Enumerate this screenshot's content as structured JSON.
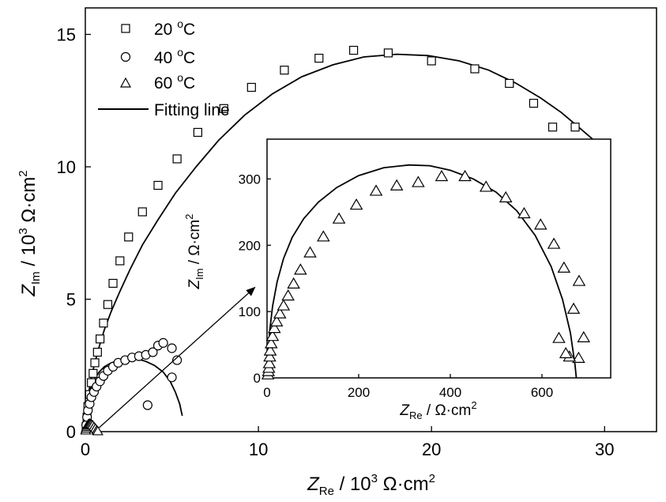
{
  "chart_data": [
    {
      "type": "scatter",
      "title": "",
      "xlabel": {
        "var": "Z",
        "sub": "Re",
        "unit_pre": " / 10",
        "exp": "3",
        "unit_post": " Ω·cm",
        "unit_exp": "2"
      },
      "ylabel": {
        "var": "Z",
        "sub": "Im",
        "unit_pre": " / 10",
        "exp": "3",
        "unit_post": " Ω·cm",
        "unit_exp": "2"
      },
      "xlim": [
        0,
        33
      ],
      "ylim": [
        0,
        16
      ],
      "x_ticks": [
        0,
        10,
        20,
        30
      ],
      "y_ticks": [
        0,
        5,
        10,
        15
      ],
      "x_tick_labels": [
        "0",
        "10",
        "20",
        "30"
      ],
      "y_tick_labels": [
        "0",
        "5",
        "10",
        "15"
      ],
      "grid": false,
      "legend_position": "top-left",
      "legend": [
        {
          "marker": "square",
          "text": "20 ",
          "deg": "o",
          "unit": "C"
        },
        {
          "marker": "circle",
          "text": "40 ",
          "deg": "o",
          "unit": "C"
        },
        {
          "marker": "triangle",
          "text": "60 ",
          "deg": "o",
          "unit": "C"
        },
        {
          "marker": "line",
          "text": "Fitting line",
          "deg": "",
          "unit": ""
        }
      ],
      "series": [
        {
          "marker": "square",
          "x": [
            0.05,
            0.1,
            0.15,
            0.25,
            0.35,
            0.45,
            0.55,
            0.7,
            0.85,
            1.05,
            1.3,
            1.6,
            2.0,
            2.5,
            3.3,
            4.2,
            5.3,
            6.5,
            8.0,
            9.6,
            11.5,
            13.5,
            15.5,
            17.5,
            20.0,
            22.5,
            24.5,
            25.9,
            27.0,
            28.3
          ],
          "y": [
            0.2,
            0.55,
            0.95,
            1.4,
            1.85,
            2.2,
            2.6,
            3.0,
            3.5,
            4.1,
            4.8,
            5.6,
            6.45,
            7.35,
            8.3,
            9.3,
            10.3,
            11.3,
            12.2,
            13.0,
            13.65,
            14.1,
            14.4,
            14.3,
            14.0,
            13.7,
            13.15,
            12.4,
            11.5,
            11.5
          ]
        },
        {
          "marker": "circle",
          "x": [
            0.05,
            0.1,
            0.15,
            0.25,
            0.35,
            0.5,
            0.65,
            0.85,
            1.05,
            1.3,
            1.6,
            1.9,
            2.3,
            2.7,
            3.1,
            3.5,
            3.9,
            4.2,
            4.5,
            5.0,
            5.3,
            3.6,
            5.0
          ],
          "y": [
            0.25,
            0.55,
            0.8,
            1.05,
            1.3,
            1.5,
            1.7,
            1.9,
            2.1,
            2.3,
            2.45,
            2.6,
            2.7,
            2.8,
            2.85,
            2.9,
            3.0,
            3.25,
            3.35,
            3.15,
            2.7,
            1.0,
            2.05
          ]
        },
        {
          "marker": "triangle",
          "x": [
            0.02,
            0.05,
            0.08,
            0.12,
            0.16,
            0.2,
            0.25,
            0.3,
            0.36,
            0.42,
            0.5,
            0.58,
            0.66,
            0.72
          ],
          "y": [
            0.05,
            0.12,
            0.18,
            0.23,
            0.27,
            0.29,
            0.3,
            0.29,
            0.27,
            0.24,
            0.18,
            0.12,
            0.05,
            0.02
          ]
        }
      ],
      "fits": [
        {
          "name": "20",
          "x": [
            0,
            0.05,
            0.1,
            0.2,
            0.35,
            0.55,
            0.8,
            1.1,
            1.5,
            2.0,
            2.6,
            3.3,
            4.2,
            5.2,
            6.4,
            7.7,
            9.2,
            10.8,
            12.5,
            14.3,
            16.1,
            18.0,
            19.8,
            21.6,
            23.3,
            24.9,
            26.3,
            27.5,
            28.5,
            29.3
          ],
          "y": [
            0,
            0.45,
            0.95,
            1.5,
            2.05,
            2.6,
            3.2,
            3.85,
            4.55,
            5.3,
            6.15,
            7.05,
            8.0,
            9.0,
            10.0,
            11.0,
            11.95,
            12.75,
            13.4,
            13.85,
            14.15,
            14.25,
            14.2,
            14.0,
            13.65,
            13.15,
            12.6,
            12.05,
            11.5,
            11.05
          ]
        },
        {
          "name": "40",
          "x": [
            0,
            0.05,
            0.1,
            0.2,
            0.35,
            0.55,
            0.8,
            1.1,
            1.5,
            2.0,
            2.5,
            3.0,
            3.5,
            4.0,
            4.5,
            4.9,
            5.2,
            5.45,
            5.6
          ],
          "y": [
            0,
            0.5,
            0.95,
            1.35,
            1.7,
            2.0,
            2.25,
            2.45,
            2.6,
            2.7,
            2.75,
            2.75,
            2.65,
            2.5,
            2.25,
            1.9,
            1.5,
            1.05,
            0.6
          ]
        }
      ],
      "annotation_arrow": {
        "from": [
          0.8,
          0.15
        ],
        "to": [
          9.8,
          5.45
        ]
      }
    },
    {
      "type": "scatter",
      "title": "",
      "xlabel": {
        "var": "Z",
        "sub": "Re",
        "unit": " / Ω·cm",
        "unit_exp": "2"
      },
      "ylabel": {
        "var": "Z",
        "sub": "Im",
        "unit": " / Ω·cm",
        "unit_exp": "2"
      },
      "xlim": [
        0,
        750
      ],
      "ylim": [
        0,
        360
      ],
      "x_ticks": [
        0,
        200,
        400,
        600
      ],
      "y_ticks": [
        0,
        100,
        200,
        300
      ],
      "x_tick_labels": [
        "0",
        "200",
        "400",
        "600"
      ],
      "y_tick_labels": [
        "0",
        "100",
        "200",
        "300"
      ],
      "grid": false,
      "series": [
        {
          "marker": "triangle",
          "x": [
            2,
            3,
            4,
            5,
            6,
            7,
            9,
            12,
            16,
            21,
            28,
            36,
            46,
            58,
            73,
            94,
            123,
            157,
            195,
            238,
            283,
            330,
            381,
            432,
            478,
            521,
            561,
            597,
            626,
            648,
            669,
            681,
            691,
            680,
            660,
            652,
            637
          ],
          "y": [
            5,
            10,
            15,
            22,
            32,
            41,
            52,
            63,
            75,
            85,
            97,
            109,
            124,
            142,
            163,
            189,
            213,
            240,
            261,
            282,
            290,
            295,
            304,
            304,
            288,
            272,
            248,
            231,
            202,
            166,
            104,
            146,
            61,
            30,
            32,
            37,
            60
          ]
        }
      ],
      "fits": [
        {
          "name": "60",
          "x": [
            0,
            2,
            6,
            12,
            22,
            36,
            55,
            80,
            112,
            152,
            200,
            255,
            310,
            355,
            400,
            450,
            500,
            545,
            585,
            620,
            645,
            662,
            672,
            675
          ],
          "y": [
            0,
            35,
            72,
            108,
            145,
            180,
            212,
            240,
            265,
            287,
            305,
            317,
            321,
            320,
            313,
            300,
            280,
            252,
            215,
            168,
            118,
            68,
            20,
            0
          ]
        }
      ]
    }
  ]
}
